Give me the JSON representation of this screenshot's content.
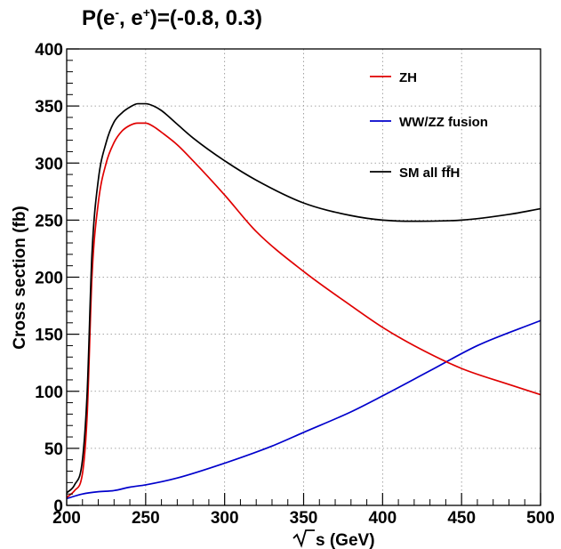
{
  "header": {
    "title_prefix": "P(e",
    "title_sup1": "-",
    "title_mid": ", e",
    "title_sup2": "+",
    "title_suffix": ")=(-0.8, 0.3)"
  },
  "chart_data": {
    "type": "line",
    "title": "P(e-, e+)=(-0.8, 0.3)",
    "xlabel": "√s (GeV)",
    "ylabel": "Cross section (fb)",
    "xlim": [
      200,
      500
    ],
    "ylim": [
      0,
      400
    ],
    "x_ticks": [
      200,
      250,
      300,
      350,
      400,
      450,
      500
    ],
    "y_ticks": [
      0,
      50,
      100,
      150,
      200,
      250,
      300,
      350,
      400
    ],
    "grid": true,
    "legend_position": "top-right",
    "series": [
      {
        "name": "ZH",
        "color": "#e00000",
        "x": [
          200,
          205,
          210,
          213,
          216,
          220,
          225,
          230,
          235,
          240,
          245,
          250,
          255,
          260,
          270,
          280,
          300,
          320,
          350,
          380,
          400,
          420,
          450,
          480,
          500
        ],
        "y": [
          7,
          13,
          28,
          80,
          200,
          265,
          300,
          318,
          328,
          333,
          335,
          335,
          332,
          327,
          316,
          302,
          272,
          240,
          205,
          175,
          156,
          140,
          120,
          106,
          97
        ]
      },
      {
        "name": "WW/ZZ fusion",
        "color": "#0000cc",
        "x": [
          200,
          210,
          220,
          230,
          240,
          250,
          270,
          300,
          330,
          350,
          380,
          400,
          430,
          460,
          500
        ],
        "y": [
          6,
          10,
          12,
          13,
          16,
          18,
          24,
          37,
          52,
          64,
          82,
          96,
          118,
          140,
          162
        ]
      },
      {
        "name": "SM all ff̄H",
        "color": "#000000",
        "x": [
          200,
          205,
          210,
          213,
          216,
          220,
          225,
          230,
          235,
          240,
          245,
          250,
          255,
          260,
          270,
          280,
          300,
          320,
          350,
          380,
          400,
          420,
          450,
          480,
          500
        ],
        "y": [
          11,
          18,
          40,
          100,
          220,
          285,
          318,
          336,
          344,
          349,
          352,
          352,
          350,
          346,
          334,
          322,
          302,
          285,
          265,
          254,
          250,
          249,
          250,
          255,
          260
        ]
      }
    ]
  }
}
